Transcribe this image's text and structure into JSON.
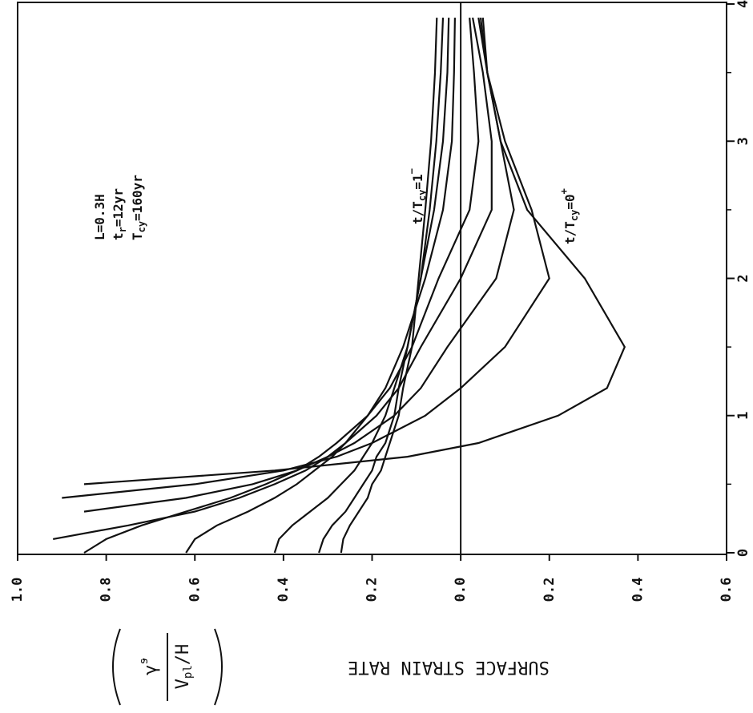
{
  "chart_data": {
    "type": "line",
    "x": [
      0,
      0.1,
      0.2,
      0.3,
      0.4,
      0.5,
      0.6,
      0.7,
      0.8,
      1.0,
      1.2,
      1.5,
      2.0,
      2.5,
      3.0,
      3.5,
      3.9
    ],
    "series": [
      {
        "color": "#111",
        "values": [
          null,
          null,
          null,
          null,
          null,
          0.85,
          0.42,
          0.12,
          -0.04,
          -0.22,
          -0.33,
          -0.37,
          -0.28,
          -0.15,
          -0.09,
          -0.06,
          -0.05
        ]
      },
      {
        "color": "#111",
        "values": [
          null,
          null,
          null,
          null,
          0.9,
          0.6,
          0.4,
          0.28,
          0.2,
          0.08,
          0.0,
          -0.1,
          -0.2,
          -0.16,
          -0.1,
          -0.06,
          -0.045
        ]
      },
      {
        "color": "#111",
        "values": [
          null,
          null,
          null,
          0.85,
          0.62,
          0.47,
          0.37,
          0.3,
          0.24,
          0.15,
          0.09,
          0.03,
          -0.08,
          -0.12,
          -0.09,
          -0.06,
          -0.04
        ]
      },
      {
        "color": "#111",
        "values": [
          null,
          0.92,
          0.75,
          0.6,
          0.5,
          0.42,
          0.35,
          0.3,
          0.26,
          0.19,
          0.14,
          0.09,
          0.0,
          -0.07,
          -0.07,
          -0.05,
          -0.027
        ]
      },
      {
        "color": "#111",
        "values": [
          0.85,
          0.8,
          0.72,
          0.62,
          0.52,
          0.44,
          0.37,
          0.32,
          0.28,
          0.21,
          0.16,
          0.11,
          0.05,
          -0.02,
          -0.04,
          -0.03,
          -0.02
        ]
      },
      {
        "color": "#111",
        "values": [
          0.62,
          0.6,
          0.55,
          0.48,
          0.42,
          0.37,
          0.33,
          0.29,
          0.26,
          0.21,
          0.17,
          0.13,
          0.08,
          0.04,
          0.02,
          0.015,
          0.013
        ]
      },
      {
        "color": "#111",
        "values": [
          0.42,
          0.41,
          0.38,
          0.34,
          0.3,
          0.27,
          0.24,
          0.22,
          0.2,
          0.17,
          0.15,
          0.12,
          0.09,
          0.06,
          0.04,
          0.03,
          0.027
        ]
      },
      {
        "color": "#111",
        "values": [
          0.32,
          0.31,
          0.29,
          0.26,
          0.24,
          0.22,
          0.2,
          0.19,
          0.17,
          0.15,
          0.14,
          0.12,
          0.09,
          0.07,
          0.055,
          0.045,
          0.04
        ]
      },
      {
        "color": "#111",
        "values": [
          0.27,
          0.265,
          0.25,
          0.23,
          0.21,
          0.2,
          0.18,
          0.17,
          0.16,
          0.14,
          0.13,
          0.11,
          0.095,
          0.08,
          0.067,
          0.058,
          0.054
        ]
      }
    ],
    "xlim": [
      0,
      4
    ],
    "xticks": [
      0,
      1,
      2,
      3,
      4
    ],
    "ylim": [
      -0.6,
      1.0
    ],
    "yticks": [
      {
        "value": 1.0,
        "label": "1.0"
      },
      {
        "value": 0.8,
        "label": "0.8"
      },
      {
        "value": 0.6,
        "label": "0.6"
      },
      {
        "value": 0.4,
        "label": "0.4"
      },
      {
        "value": 0.2,
        "label": "0.2"
      },
      {
        "value": 0,
        "label": "0.0"
      },
      {
        "value": -0.2,
        "label": "0.2"
      },
      {
        "value": -0.4,
        "label": "0.4"
      },
      {
        "value": -0.6,
        "label": "0.6"
      }
    ],
    "y_label": "SURFACE STRAIN RATE",
    "y_unit": {
      "num": "γ̇",
      "num_sup": "s",
      "den": "V",
      "den_sub": "pl",
      "den_tail": "/H"
    },
    "annotations": [
      [
        {
          "text": "L=0.3H"
        }
      ],
      [
        {
          "text": "t"
        },
        {
          "text": "r",
          "shift": "sub"
        },
        {
          "text": "=12yr"
        }
      ],
      [
        {
          "text": "T"
        },
        {
          "text": "cy",
          "shift": "sub"
        },
        {
          "text": "=160yr"
        }
      ],
      [
        {
          "text": "t/T"
        },
        {
          "text": "cy",
          "shift": "sub"
        },
        {
          "text": "=1"
        },
        {
          "text": "−",
          "shift": "sup"
        }
      ],
      [
        {
          "text": "t/T"
        },
        {
          "text": "cy",
          "shift": "sub"
        },
        {
          "text": "=0"
        },
        {
          "text": "+",
          "shift": "sup"
        }
      ]
    ]
  }
}
